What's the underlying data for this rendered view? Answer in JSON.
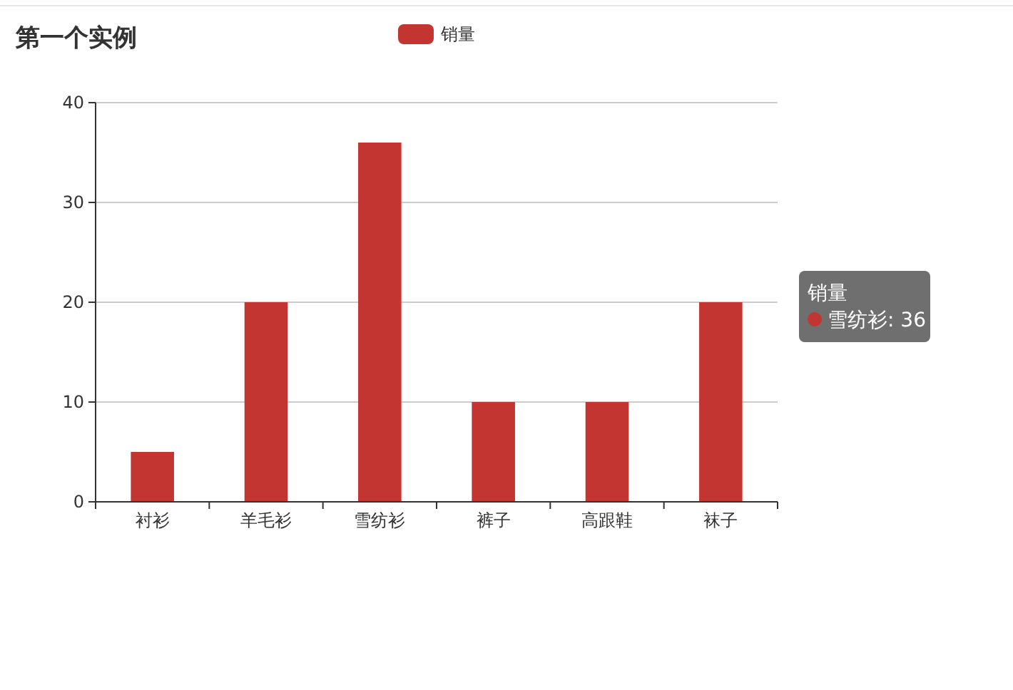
{
  "chart_data": {
    "type": "bar",
    "title": "第一个实例",
    "categories": [
      "衬衫",
      "羊毛衫",
      "雪纺衫",
      "裤子",
      "高跟鞋",
      "袜子"
    ],
    "series": [
      {
        "name": "销量",
        "color": "#c23531",
        "values": [
          5,
          20,
          36,
          10,
          10,
          20
        ]
      }
    ],
    "ylim": [
      0,
      40
    ],
    "yticks": [
      0,
      10,
      20,
      30,
      40
    ],
    "grid": "y",
    "legend": "top",
    "annotations": [
      "销量",
      "雪纺衫: 36"
    ]
  }
}
